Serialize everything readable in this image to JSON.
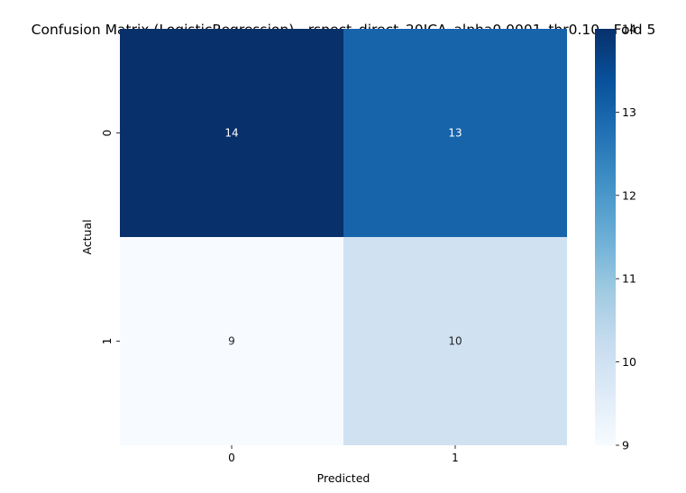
{
  "chart_data": {
    "type": "heatmap",
    "title": "Confusion Matrix (LogisticRegression) - rspect_direct_20ICA_alpha0.0001_thr0.10 - Fold 5",
    "xlabel": "Predicted",
    "ylabel": "Actual",
    "x_categories": [
      "0",
      "1"
    ],
    "y_categories": [
      "0",
      "1"
    ],
    "values": [
      [
        14,
        13
      ],
      [
        9,
        10
      ]
    ],
    "colormap": "Blues",
    "colorbar": {
      "min": 9,
      "max": 14,
      "ticks": [
        "9",
        "10",
        "11",
        "12",
        "13",
        "14"
      ]
    },
    "annotations": true
  }
}
